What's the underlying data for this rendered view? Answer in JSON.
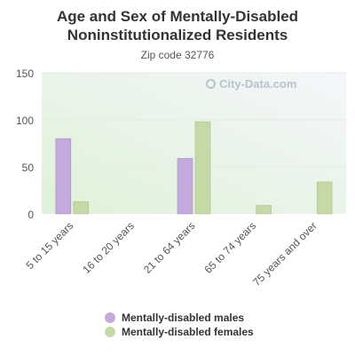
{
  "header": {
    "title": "Age and Sex of Mentally-Disabled Noninstitutionalized Residents",
    "subtitle": "Zip code 32776"
  },
  "watermark": {
    "text": "City-Data.com",
    "icon": "search-icon"
  },
  "colors": {
    "males": "#c3a9dc",
    "females": "#c5d9a6",
    "axis_text": "#555555",
    "plot_bg_top": "#f4f6fb",
    "plot_bg_bottom": "#dff2d7"
  },
  "chart_data": {
    "type": "bar",
    "title": "Age and Sex of Mentally-Disabled Noninstitutionalized Residents",
    "subtitle": "Zip code 32776",
    "categories": [
      "5 to 15 years",
      "16 to 20 years",
      "21 to 64 years",
      "65 to 74 years",
      "75 years and over"
    ],
    "series": [
      {
        "name": "Mentally-disabled males",
        "values": [
          80,
          0,
          59,
          0,
          0
        ]
      },
      {
        "name": "Mentally-disabled females",
        "values": [
          13,
          0,
          98,
          9,
          34
        ]
      }
    ],
    "ylim": [
      0,
      150
    ],
    "yticks": [
      "0",
      "50",
      "100",
      "150"
    ],
    "grid": true,
    "legend_position": "bottom"
  }
}
